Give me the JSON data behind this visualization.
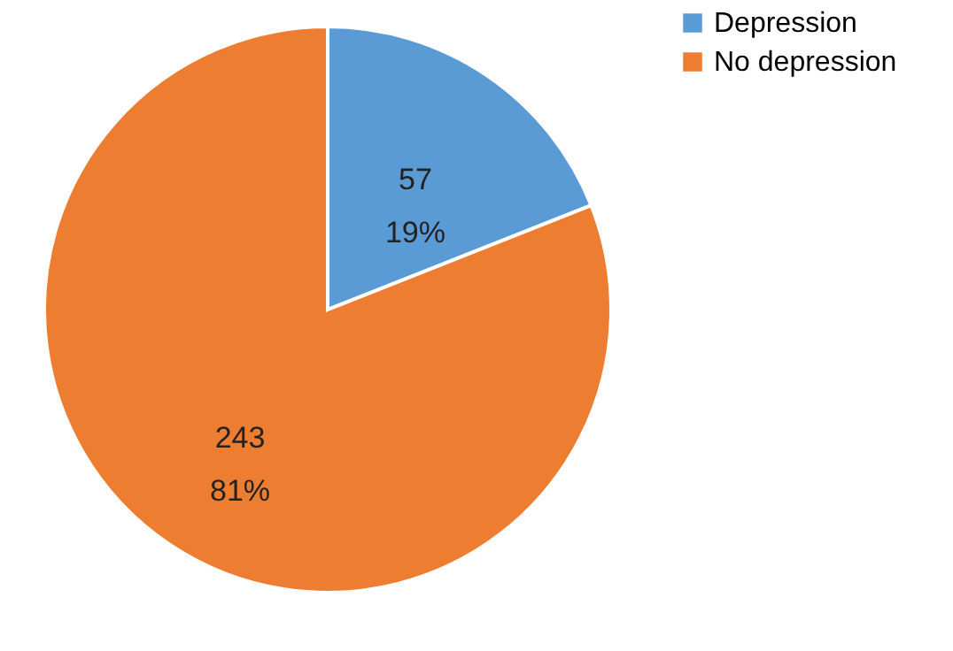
{
  "chart_data": {
    "type": "pie",
    "categories": [
      "Depression",
      "No depression"
    ],
    "values": [
      57,
      243
    ],
    "colors": [
      "#5b9bd5",
      "#ed7d31"
    ],
    "value_labels": [
      "57\n19%",
      "243\n81%"
    ],
    "legend": "right"
  }
}
